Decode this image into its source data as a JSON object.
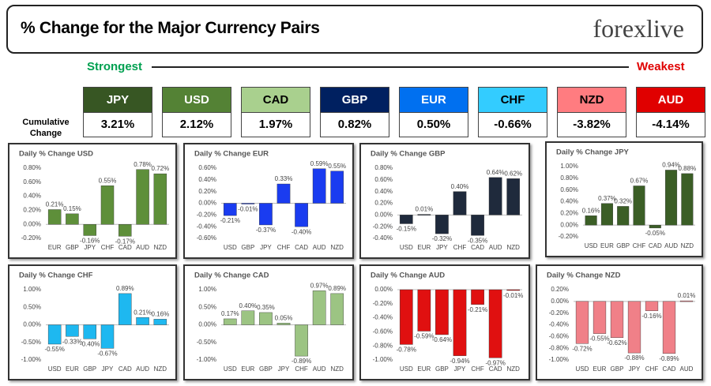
{
  "header": {
    "title": "% Change for the Major Currency Pairs",
    "logo": "forexlive"
  },
  "strongest": "Strongest",
  "weakest": "Weakest",
  "cumulative_label": "Cumulative Change",
  "currencies": [
    {
      "name": "JPY",
      "change": "3.21%",
      "color": "#375623"
    },
    {
      "name": "USD",
      "change": "2.12%",
      "color": "#548235"
    },
    {
      "name": "CAD",
      "change": "1.97%",
      "color": "#a9d08e"
    },
    {
      "name": "GBP",
      "change": "0.82%",
      "color": "#002060"
    },
    {
      "name": "EUR",
      "change": "0.50%",
      "color": "#0070f0"
    },
    {
      "name": "CHF",
      "change": "-0.66%",
      "color": "#33ccff"
    },
    {
      "name": "NZD",
      "change": "-3.82%",
      "color": "#ff7c80"
    },
    {
      "name": "AUD",
      "change": "-4.14%",
      "color": "#e00000"
    }
  ],
  "chart_data": [
    {
      "type": "bar",
      "title": "Daily % Change USD",
      "color": "#5e8f3a",
      "categories": [
        "EUR",
        "GBP",
        "JPY",
        "CHF",
        "CAD",
        "AUD",
        "NZD"
      ],
      "values": [
        0.21,
        0.15,
        -0.16,
        0.55,
        -0.17,
        0.78,
        0.72
      ],
      "value_labels": [
        "0.21%",
        "0.15%",
        "-0.16%",
        "0.55%",
        "-0.17%",
        "0.78%",
        "0.72%"
      ],
      "ylim": [
        -0.2,
        0.8
      ],
      "yticks": [
        {
          "value": -0.2,
          "label": "-0.20%"
        },
        {
          "value": 0,
          "label": "0.00%"
        },
        {
          "value": 0.2,
          "label": "0.20%"
        },
        {
          "value": 0.4,
          "label": "0.40%"
        },
        {
          "value": 0.6,
          "label": "0.60%"
        },
        {
          "value": 0.8,
          "label": "0.80%"
        }
      ]
    },
    {
      "type": "bar",
      "title": "Daily % Change EUR",
      "color": "#1a3cf0",
      "categories": [
        "USD",
        "GBP",
        "JPY",
        "CHF",
        "CAD",
        "AUD",
        "NZD"
      ],
      "values": [
        -0.21,
        -0.01,
        -0.37,
        0.33,
        -0.4,
        0.59,
        0.55
      ],
      "value_labels": [
        "-0.21%",
        "-0.01%",
        "-0.37%",
        "0.33%",
        "-0.40%",
        "0.59%",
        "0.55%"
      ],
      "ylim": [
        -0.6,
        0.6
      ],
      "yticks": [
        {
          "value": -0.6,
          "label": "-0.60%"
        },
        {
          "value": -0.4,
          "label": "-0.40%"
        },
        {
          "value": -0.2,
          "label": "-0.20%"
        },
        {
          "value": 0,
          "label": "0.00%"
        },
        {
          "value": 0.2,
          "label": "0.20%"
        },
        {
          "value": 0.4,
          "label": "0.40%"
        },
        {
          "value": 0.6,
          "label": "0.60%"
        }
      ]
    },
    {
      "type": "bar",
      "title": "Daily % Change GBP",
      "color": "#1f2a3c",
      "categories": [
        "USD",
        "EUR",
        "JPY",
        "CHF",
        "CAD",
        "AUD",
        "NZD"
      ],
      "values": [
        -0.15,
        0.01,
        -0.32,
        0.4,
        -0.35,
        0.64,
        0.62
      ],
      "value_labels": [
        "-0.15%",
        "0.01%",
        "-0.32%",
        "0.40%",
        "-0.35%",
        "0.64%",
        "0.62%"
      ],
      "ylim": [
        -0.4,
        0.8
      ],
      "yticks": [
        {
          "value": -0.4,
          "label": "-0.40%"
        },
        {
          "value": -0.2,
          "label": "-0.20%"
        },
        {
          "value": 0,
          "label": "0.00%"
        },
        {
          "value": 0.2,
          "label": "0.20%"
        },
        {
          "value": 0.4,
          "label": "0.40%"
        },
        {
          "value": 0.6,
          "label": "0.60%"
        },
        {
          "value": 0.8,
          "label": "0.80%"
        }
      ]
    },
    {
      "type": "bar",
      "title": "Daily % Change JPY",
      "color": "#3b5e26",
      "categories": [
        "USD",
        "EUR",
        "GBP",
        "CHF",
        "CAD",
        "AUD",
        "NZD"
      ],
      "values": [
        0.16,
        0.37,
        0.32,
        0.67,
        -0.05,
        0.94,
        0.88
      ],
      "value_labels": [
        "0.16%",
        "0.37%",
        "0.32%",
        "0.67%",
        "-0.05%",
        "0.94%",
        "0.88%"
      ],
      "ylim": [
        -0.2,
        1
      ],
      "yticks": [
        {
          "value": -0.2,
          "label": "-0.20%"
        },
        {
          "value": 0,
          "label": "0.00%"
        },
        {
          "value": 0.2,
          "label": "0.20%"
        },
        {
          "value": 0.4,
          "label": "0.40%"
        },
        {
          "value": 0.6,
          "label": "0.60%"
        },
        {
          "value": 0.8,
          "label": "0.80%"
        },
        {
          "value": 1,
          "label": "1.00%"
        }
      ]
    },
    {
      "type": "bar",
      "title": "Daily % Change CHF",
      "color": "#1eb8f0",
      "categories": [
        "USD",
        "EUR",
        "GBP",
        "JPY",
        "CAD",
        "AUD",
        "NZD"
      ],
      "values": [
        -0.55,
        -0.33,
        -0.4,
        -0.67,
        0.89,
        0.21,
        0.16
      ],
      "value_labels": [
        "-0.55%",
        "-0.33%",
        "-0.40%",
        "-0.67%",
        "0.89%",
        "0.21%",
        "0.16%"
      ],
      "ylim": [
        -1,
        1
      ],
      "yticks": [
        {
          "value": -1,
          "label": "-1.00%"
        },
        {
          "value": -0.5,
          "label": "-0.50%"
        },
        {
          "value": 0,
          "label": "0.00%"
        },
        {
          "value": 0.5,
          "label": "0.50%"
        },
        {
          "value": 1,
          "label": "1.00%"
        }
      ]
    },
    {
      "type": "bar",
      "title": "Daily % Change CAD",
      "color": "#9cc483",
      "categories": [
        "USD",
        "EUR",
        "GBP",
        "JPY",
        "CHF",
        "AUD",
        "NZD"
      ],
      "values": [
        0.17,
        0.4,
        0.35,
        0.05,
        -0.89,
        0.97,
        0.89
      ],
      "value_labels": [
        "0.17%",
        "0.40%",
        "0.35%",
        "0.05%",
        "-0.89%",
        "0.97%",
        "0.89%"
      ],
      "ylim": [
        -1,
        1
      ],
      "yticks": [
        {
          "value": -1,
          "label": "-1.00%"
        },
        {
          "value": -0.5,
          "label": "-0.50%"
        },
        {
          "value": 0,
          "label": "0.00%"
        },
        {
          "value": 0.5,
          "label": "0.50%"
        },
        {
          "value": 1,
          "label": "1.00%"
        }
      ]
    },
    {
      "type": "bar",
      "title": "Daily % Change AUD",
      "color": "#e01010",
      "categories": [
        "USD",
        "EUR",
        "GBP",
        "JPY",
        "CHF",
        "CAD",
        "NZD"
      ],
      "values": [
        -0.78,
        -0.59,
        -0.64,
        -0.94,
        -0.21,
        -0.97,
        -0.01
      ],
      "value_labels": [
        "-0.78%",
        "-0.59%",
        "-0.64%",
        "-0.94%",
        "-0.21%",
        "-0.97%",
        "-0.01%"
      ],
      "ylim": [
        -1,
        0
      ],
      "yticks": [
        {
          "value": -1,
          "label": "-1.00%"
        },
        {
          "value": -0.8,
          "label": "-0.80%"
        },
        {
          "value": -0.6,
          "label": "-0.60%"
        },
        {
          "value": -0.4,
          "label": "-0.40%"
        },
        {
          "value": -0.2,
          "label": "-0.20%"
        },
        {
          "value": 0,
          "label": "0.00%"
        }
      ]
    },
    {
      "type": "bar",
      "title": "Daily % Change NZD",
      "color": "#f08088",
      "categories": [
        "USD",
        "EUR",
        "GBP",
        "JPY",
        "CHF",
        "CAD",
        "AUD"
      ],
      "values": [
        -0.72,
        -0.55,
        -0.62,
        -0.88,
        -0.16,
        -0.89,
        0.01
      ],
      "value_labels": [
        "-0.72%",
        "-0.55%",
        "-0.62%",
        "-0.88%",
        "-0.16%",
        "-0.89%",
        "0.01%"
      ],
      "ylim": [
        -1,
        0.2
      ],
      "yticks": [
        {
          "value": -1,
          "label": "-1.00%"
        },
        {
          "value": -0.8,
          "label": "-0.80%"
        },
        {
          "value": -0.6,
          "label": "-0.60%"
        },
        {
          "value": -0.4,
          "label": "-0.40%"
        },
        {
          "value": -0.2,
          "label": "-0.20%"
        },
        {
          "value": 0,
          "label": "0.00%"
        },
        {
          "value": 0.2,
          "label": "0.20%"
        }
      ]
    }
  ]
}
